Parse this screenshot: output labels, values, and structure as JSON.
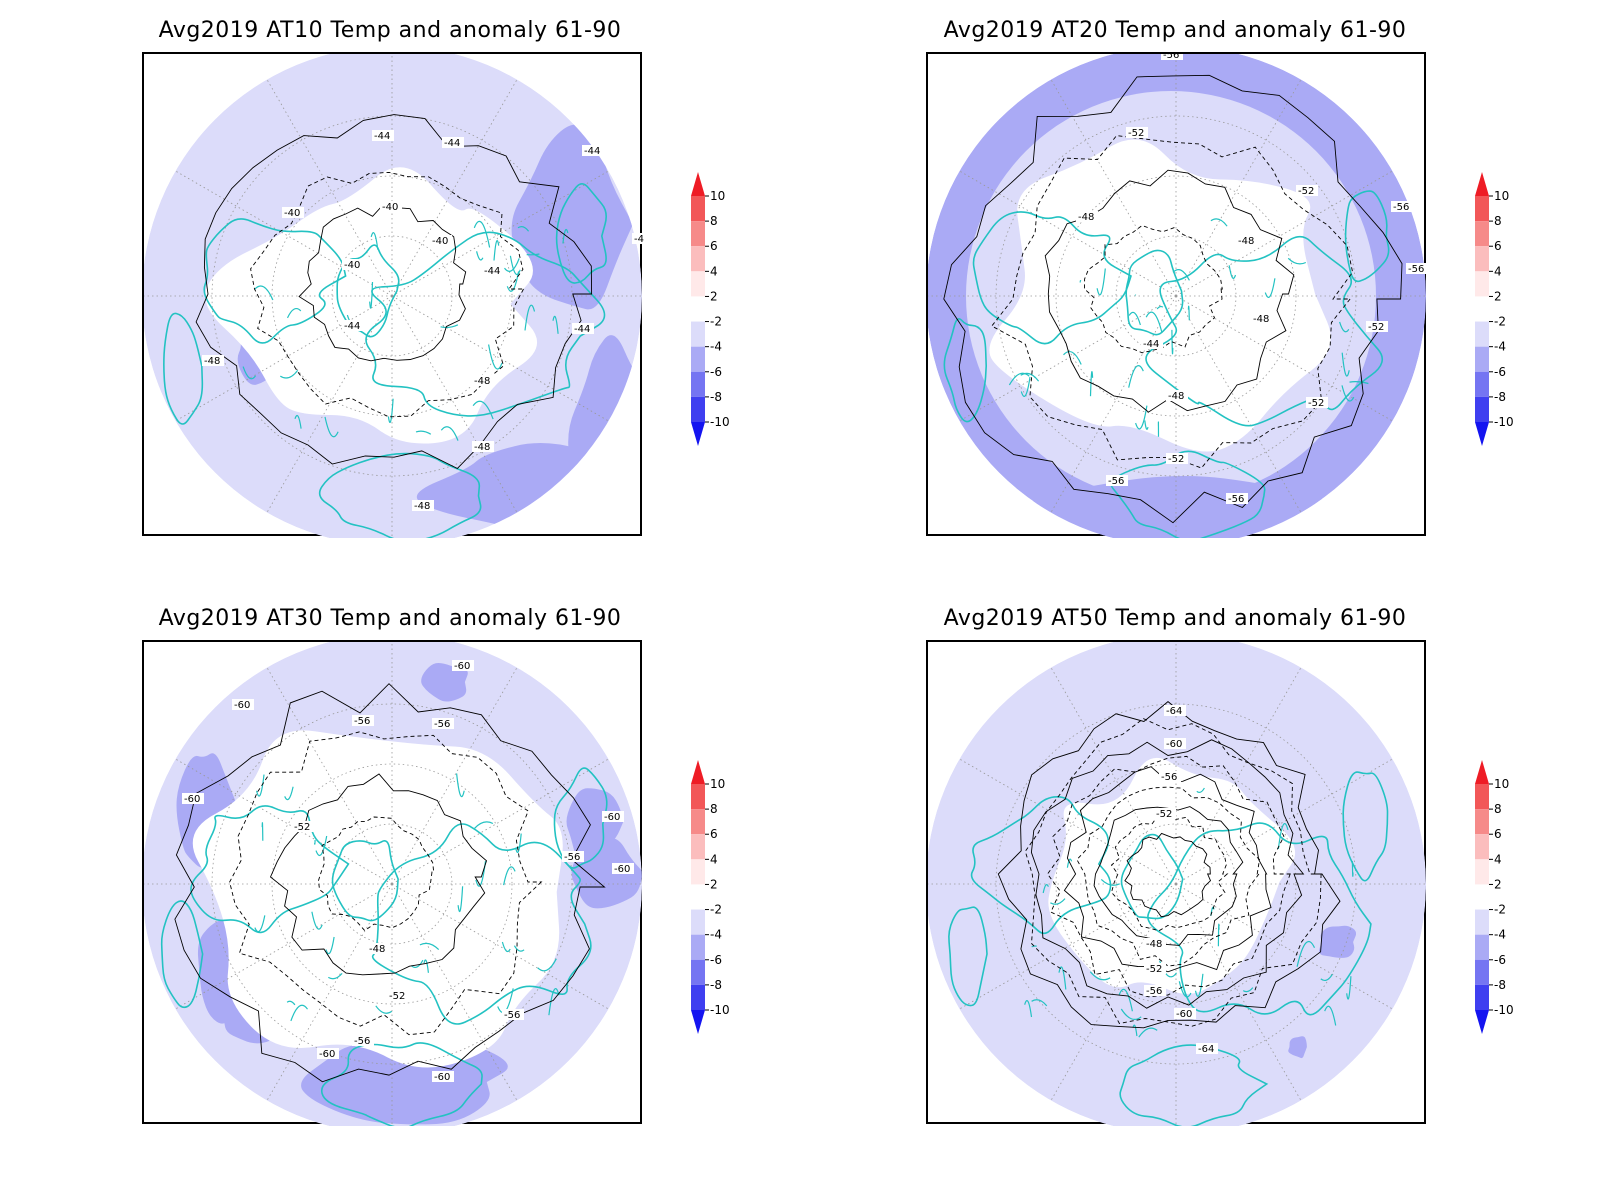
{
  "panels": [
    {
      "id": "at10",
      "title": "Avg2019 AT10 Temp and anomaly 61-90",
      "contour_labels": [
        "-44",
        "-44",
        "-40",
        "-40",
        "-40",
        "-44",
        "-40",
        "-44",
        "-44",
        "-48",
        "-48",
        "-44",
        "-44",
        "-48",
        "-48"
      ]
    },
    {
      "id": "at20",
      "title": "Avg2019 AT20 Temp and anomaly 61-90",
      "contour_labels": [
        "-56",
        "-52",
        "-52",
        "-48",
        "-48",
        "-56",
        "-56",
        "-52",
        "-48",
        "-44",
        "-48",
        "-52",
        "-52",
        "-56",
        "-56"
      ]
    },
    {
      "id": "at30",
      "title": "Avg2019 AT30 Temp and anomaly 61-90",
      "contour_labels": [
        "-60",
        "-60",
        "-56",
        "-56",
        "-60",
        "-52",
        "-60",
        "-56",
        "-60",
        "-48",
        "-52",
        "-56",
        "-60",
        "-56",
        "-60"
      ]
    },
    {
      "id": "at50",
      "title": "Avg2019 AT50 Temp and anomaly 61-90",
      "contour_labels": [
        "-64",
        "-60",
        "-56",
        "-52",
        "-48",
        "-52",
        "-56",
        "-60",
        "-64"
      ]
    }
  ],
  "colorbar": {
    "labels": [
      "10",
      "8",
      "6",
      "4",
      "2",
      "-2",
      "-4",
      "-6",
      "-8",
      "-10"
    ],
    "colors": [
      "#ee1c25",
      "#f25758",
      "#f68a89",
      "#fbbdbd",
      "#ffe9e9",
      "#ffffff",
      "#dcdcfa",
      "#aaaaf5",
      "#7575f2",
      "#3f3ff0",
      "#1414f0"
    ]
  },
  "colors": {
    "coastline": "#23c2c2",
    "contour": "#000000",
    "anomaly_light": "#dcdcfa",
    "anomaly_mid": "#aaaaf5"
  }
}
